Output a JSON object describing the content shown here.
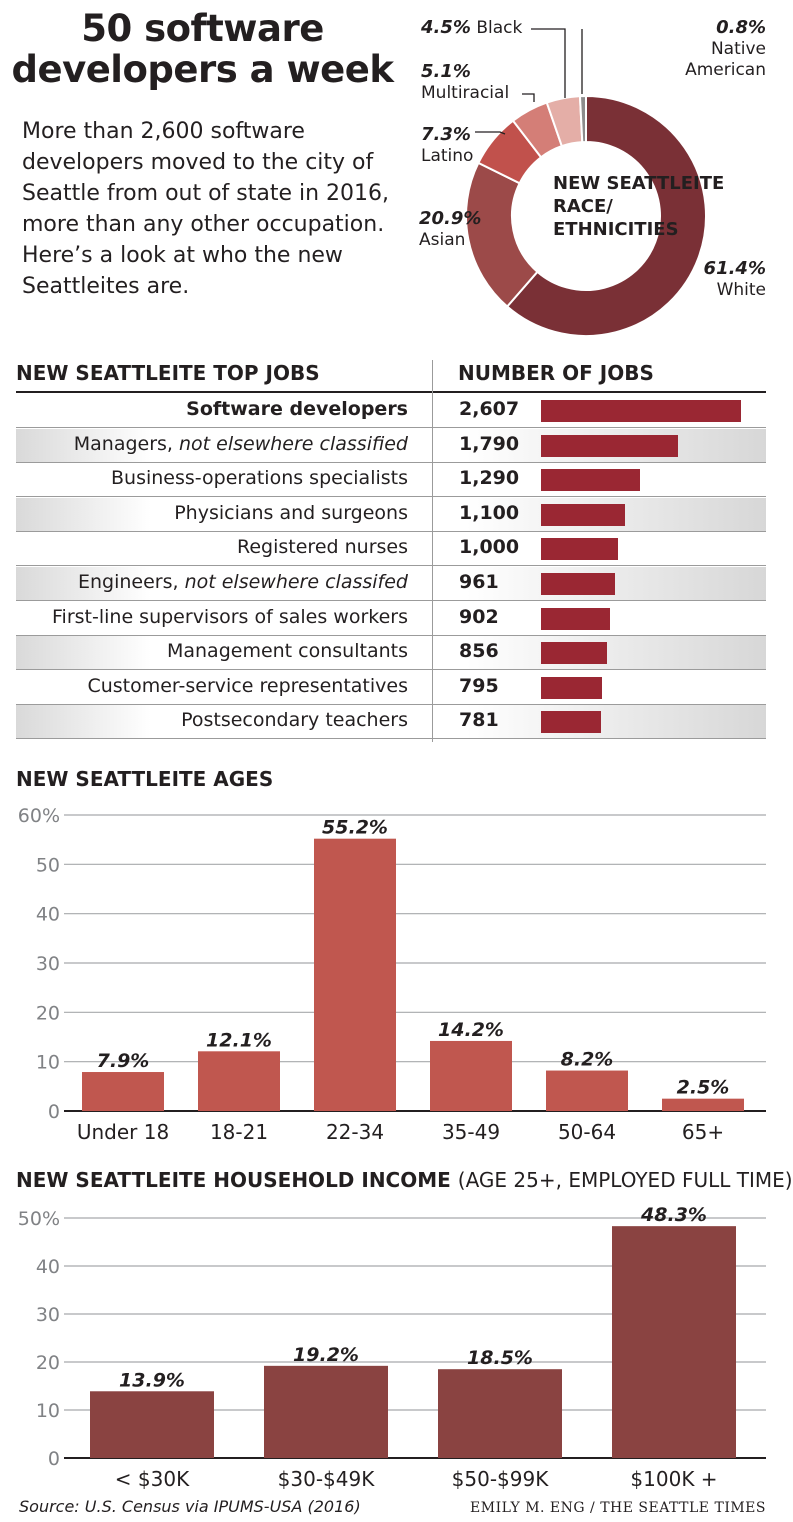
{
  "headline": "50 software developers a week",
  "intro": "More than 2,600 software developers moved to the city of Seattle from out of state in 2016, more than any other occupation. Here’s a look at who the new Seattleites are.",
  "colors": {
    "bar_red": "#9a2733",
    "age_bar": "#c0574f",
    "income_bar": "#8a4341",
    "white": "#7a3036",
    "asian": "#9c4a49",
    "latino": "#c1514c",
    "multiracial": "#d47e77",
    "black": "#e4aea7",
    "native": "#8d8d8d"
  },
  "race": {
    "center_line1": "NEW SEATTLEITE",
    "center_line2": "RACE/",
    "center_line3": "ETHNICITIES",
    "black_pct": "4.5%",
    "black_label": "Black",
    "native_pct": "0.8%",
    "native_label1": "Native",
    "native_label2": "American",
    "multi_pct": "5.1%",
    "multi_label": "Multiracial",
    "latino_pct": "7.3%",
    "latino_label": "Latino",
    "asian_pct": "20.9%",
    "asian_label": "Asian",
    "white_pct": "61.4%",
    "white_label": "White"
  },
  "jobs": {
    "title": "NEW SEATTLEITE TOP JOBS",
    "number_header": "NUMBER OF JOBS"
  },
  "ages": {
    "title": "NEW SEATTLEITE AGES"
  },
  "income": {
    "title": "NEW SEATTLEITE HOUSEHOLD INCOME",
    "title_note": "(AGE 25+, EMPLOYED FULL TIME)"
  },
  "footer": {
    "source": "Source: U.S. Census via IPUMS-USA (2016)",
    "credit": "EMILY M. ENG / THE SEATTLE TIMES"
  },
  "chart_data": [
    {
      "type": "pie",
      "title": "NEW SEATTLEITE RACE/ ETHNICITIES",
      "slices": [
        {
          "name": "White",
          "value": 61.4
        },
        {
          "name": "Asian",
          "value": 20.9
        },
        {
          "name": "Latino",
          "value": 7.3
        },
        {
          "name": "Multiracial",
          "value": 5.1
        },
        {
          "name": "Black",
          "value": 4.5
        },
        {
          "name": "Native American",
          "value": 0.8
        }
      ]
    },
    {
      "type": "bar",
      "title": "NEW SEATTLEITE TOP JOBS",
      "value_header": "NUMBER OF JOBS",
      "orientation": "horizontal",
      "max": 2607,
      "rows": [
        {
          "pre": "Software developers",
          "italic": "",
          "label": "2,607",
          "value": 2607,
          "bold": true
        },
        {
          "pre": "Managers, ",
          "italic": "not elsewhere classified",
          "label": "1,790",
          "value": 1790,
          "bold": false
        },
        {
          "pre": "Business-operations specialists",
          "italic": "",
          "label": "1,290",
          "value": 1290,
          "bold": false
        },
        {
          "pre": "Physicians and surgeons",
          "italic": "",
          "label": "1,100",
          "value": 1100,
          "bold": false
        },
        {
          "pre": "Registered nurses",
          "italic": "",
          "label": "1,000",
          "value": 1000,
          "bold": false
        },
        {
          "pre": "Engineers, ",
          "italic": "not elsewhere classifed",
          "label": "961",
          "value": 961,
          "bold": false
        },
        {
          "pre": "First-line supervisors of sales workers",
          "italic": "",
          "label": "902",
          "value": 902,
          "bold": false
        },
        {
          "pre": "Management consultants",
          "italic": "",
          "label": "856",
          "value": 856,
          "bold": false
        },
        {
          "pre": "Customer-service representatives",
          "italic": "",
          "label": "795",
          "value": 795,
          "bold": false
        },
        {
          "pre": "Postsecondary teachers",
          "italic": "",
          "label": "781",
          "value": 781,
          "bold": false
        }
      ]
    },
    {
      "type": "bar",
      "title": "NEW SEATTLEITE AGES",
      "categories": [
        "Under 18",
        "18-21",
        "22-34",
        "35-49",
        "50-64",
        "65+"
      ],
      "values": [
        7.9,
        12.1,
        55.2,
        14.2,
        8.2,
        2.5
      ],
      "value_labels": [
        "7.9%",
        "12.1%",
        "55.2%",
        "14.2%",
        "8.2%",
        "2.5%"
      ],
      "yticks": [
        "0",
        "10",
        "20",
        "30",
        "40",
        "50",
        "60%"
      ],
      "ylim": [
        0,
        60
      ],
      "grid": true
    },
    {
      "type": "bar",
      "title": "NEW SEATTLEITE HOUSEHOLD INCOME (AGE 25+, EMPLOYED FULL TIME)",
      "categories": [
        "< $30K",
        "$30-$49K",
        "$50-$99K",
        "$100K +"
      ],
      "values": [
        13.9,
        19.2,
        18.5,
        48.3
      ],
      "value_labels": [
        "13.9%",
        "19.2%",
        "18.5%",
        "48.3%"
      ],
      "yticks": [
        "0",
        "10",
        "20",
        "30",
        "40",
        "50%"
      ],
      "ylim": [
        0,
        50
      ],
      "grid": true
    }
  ]
}
